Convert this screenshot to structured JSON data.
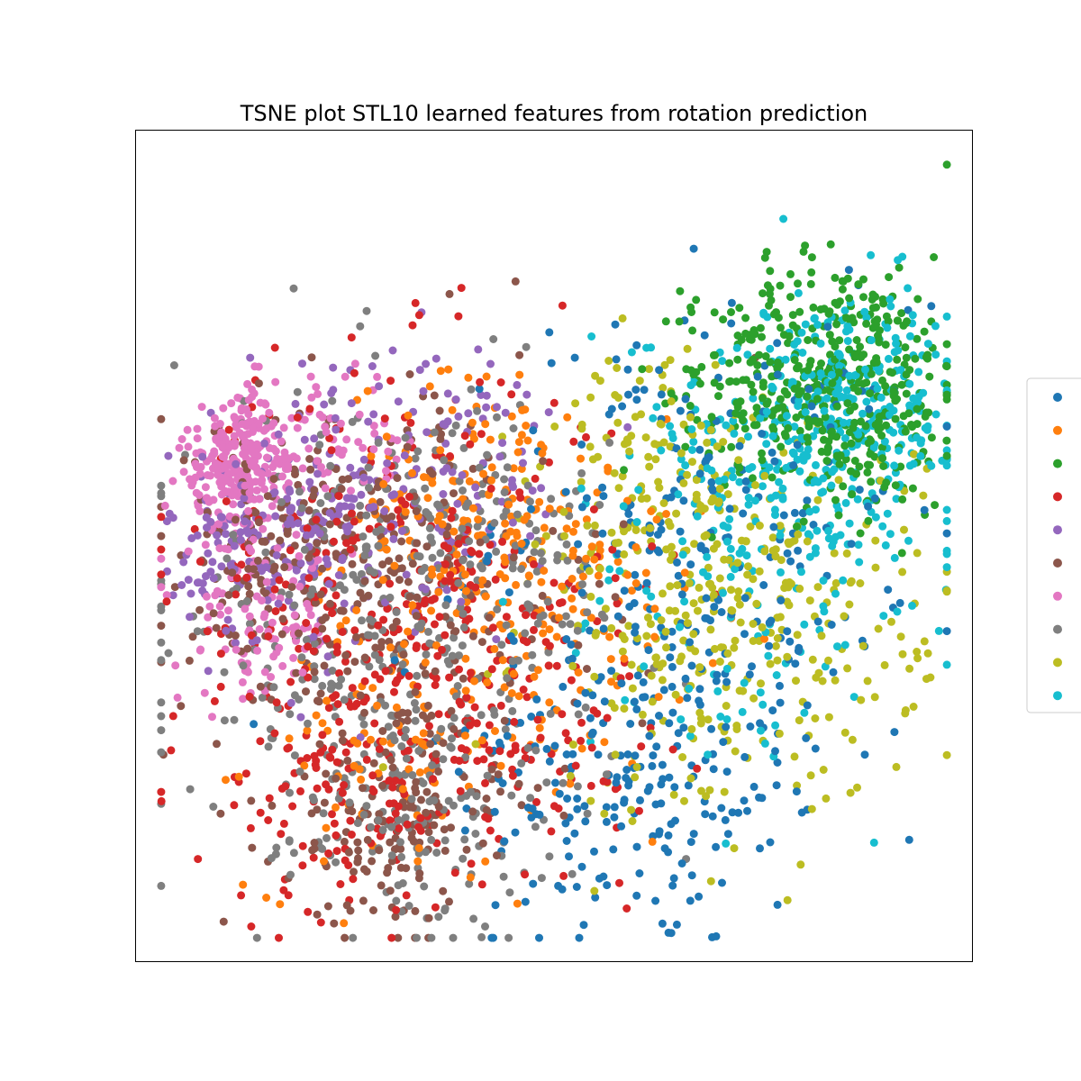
{
  "chart_data": {
    "type": "scatter",
    "title": "TSNE plot STL10 learned features from rotation prediction",
    "xlabel": "",
    "ylabel": "",
    "x_ticks": "none",
    "y_ticks": "none",
    "grid": false,
    "legend": {
      "placement": "right, outside plot",
      "entry_labels_visible": false
    },
    "series": [
      {
        "color": "#1f77b4",
        "clusters": [
          [
            61,
            22,
            12,
            240
          ],
          [
            69,
            54,
            13,
            220
          ]
        ]
      },
      {
        "color": "#ff7f0e",
        "clusters": [
          [
            40,
            55,
            8,
            150
          ],
          [
            50,
            40,
            9,
            120
          ],
          [
            30,
            25,
            9,
            90
          ]
        ]
      },
      {
        "color": "#2ca02c",
        "clusters": [
          [
            86,
            70,
            8,
            380
          ],
          [
            78,
            72,
            6,
            90
          ]
        ]
      },
      {
        "color": "#d62728",
        "clusters": [
          [
            30,
            45,
            14,
            300
          ],
          [
            25,
            20,
            8,
            130
          ],
          [
            45,
            30,
            9,
            100
          ]
        ]
      },
      {
        "color": "#9467bd",
        "clusters": [
          [
            14,
            50,
            6,
            140
          ],
          [
            25,
            55,
            10,
            120
          ],
          [
            37,
            60,
            8,
            70
          ]
        ]
      },
      {
        "color": "#8c564b",
        "clusters": [
          [
            28,
            45,
            13,
            280
          ],
          [
            30,
            15,
            7,
            140
          ],
          [
            16,
            50,
            6,
            80
          ]
        ]
      },
      {
        "color": "#e377c2",
        "clusters": [
          [
            12,
            62,
            4,
            150
          ],
          [
            9,
            58,
            3,
            110
          ],
          [
            13,
            40,
            5,
            100
          ],
          [
            23,
            62,
            5,
            50
          ]
        ]
      },
      {
        "color": "#7f7f7f",
        "clusters": [
          [
            30,
            40,
            14,
            350
          ],
          [
            32,
            18,
            8,
            120
          ],
          [
            40,
            50,
            8,
            90
          ]
        ]
      },
      {
        "color": "#bcbd22",
        "clusters": [
          [
            72,
            40,
            12,
            350
          ],
          [
            62,
            62,
            6,
            80
          ]
        ]
      },
      {
        "color": "#17becf",
        "clusters": [
          [
            80,
            60,
            10,
            220
          ],
          [
            88,
            68,
            7,
            200
          ],
          [
            70,
            40,
            10,
            70
          ]
        ]
      }
    ],
    "xlim": [
      0,
      100
    ],
    "ylim": [
      0,
      100
    ]
  }
}
